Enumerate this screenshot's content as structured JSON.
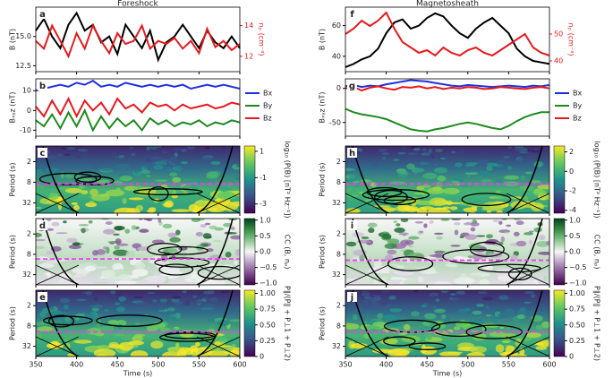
{
  "chart_data": [
    {
      "type": "line",
      "title": "Foreshock",
      "panel_label": "a",
      "ylabel": "B (nT)",
      "y2label": "nₚ (cm⁻³)",
      "xlim": [
        350,
        600
      ],
      "ylim": [
        12,
        17.5
      ],
      "yticks": [
        {
          "value": 12.5,
          "label": "12.5"
        },
        {
          "value": 15,
          "label": "15.0"
        }
      ],
      "y2lim": [
        11,
        15.2
      ],
      "y2ticks": [
        12,
        14
      ],
      "x": [
        350,
        360,
        370,
        380,
        390,
        400,
        410,
        420,
        430,
        440,
        450,
        460,
        470,
        480,
        490,
        500,
        510,
        520,
        530,
        540,
        550,
        560,
        570,
        580,
        590,
        600
      ],
      "series": [
        {
          "color": "#000000",
          "values": [
            15.5,
            16.5,
            15,
            14,
            16,
            17,
            15.5,
            16,
            14.5,
            15,
            13.5,
            16,
            15,
            14,
            15.5,
            13,
            14.5,
            15,
            16,
            15,
            14,
            15.5,
            14.5,
            14,
            15,
            14
          ]
        },
        {
          "color": "#e8191c",
          "axis": "y2",
          "values": [
            13,
            12.5,
            14,
            13,
            12,
            13.5,
            12.5,
            14,
            13,
            12.2,
            13.5,
            12.8,
            13,
            14,
            12.5,
            13,
            12.8,
            13.2,
            12.5,
            13,
            12.2,
            13.8,
            12.6,
            13,
            12.4,
            12.8
          ]
        }
      ]
    },
    {
      "type": "line",
      "panel_label": "b",
      "ylabel": "Bₓᵧz (nT)",
      "xlim": [
        350,
        600
      ],
      "ylim": [
        -13,
        16
      ],
      "yticks": [
        -10,
        0,
        10
      ],
      "x": [
        350,
        360,
        370,
        380,
        390,
        400,
        410,
        420,
        430,
        440,
        450,
        460,
        470,
        480,
        490,
        500,
        510,
        520,
        530,
        540,
        550,
        560,
        570,
        580,
        590,
        600
      ],
      "series": [
        {
          "name": "Bx",
          "color": "#1f2fe0",
          "values": [
            10,
            11,
            12,
            13,
            12,
            14,
            13,
            15,
            12,
            13,
            12,
            14,
            13,
            12,
            13,
            12,
            13,
            12,
            13,
            11,
            12,
            13,
            12,
            13,
            12,
            11
          ]
        },
        {
          "name": "By",
          "color": "#1e8a1e",
          "values": [
            -5,
            -8,
            -2,
            -9,
            -1,
            -8,
            0,
            -10,
            -3,
            -9,
            -4,
            -8,
            -5,
            -10,
            -4,
            -7,
            -5,
            -8,
            -6,
            -7,
            -5,
            -8,
            -6,
            -7,
            -5,
            -6
          ]
        },
        {
          "name": "Bz",
          "color": "#e8191c",
          "values": [
            2,
            -3,
            5,
            -2,
            6,
            -3,
            5,
            0,
            4,
            -2,
            6,
            1,
            3,
            -1,
            4,
            2,
            3,
            0,
            3,
            1,
            2,
            3,
            1,
            2,
            4,
            3
          ]
        }
      ]
    },
    {
      "type": "heatmap",
      "panel_label": "c",
      "ylabel": "Period (s)",
      "xlim": [
        350,
        600
      ],
      "ylim": [
        0.7,
        64
      ],
      "yticks": [
        2,
        8,
        32
      ],
      "reference_period": 9,
      "colormap": "viridis",
      "colorbar": {
        "label": "log₁₀ (P(B) [nT² Hz⁻¹])",
        "lim": [
          -3.7,
          1.4
        ],
        "ticks": [
          -3,
          -1,
          1
        ]
      }
    },
    {
      "type": "heatmap",
      "panel_label": "d",
      "ylabel": "Period (s)",
      "xlim": [
        350,
        600
      ],
      "ylim": [
        0.7,
        64
      ],
      "yticks": [
        2,
        8,
        32
      ],
      "reference_period": 11,
      "colormap": "PRGn",
      "colorbar": {
        "label": "CC (B, nₚ)",
        "lim": [
          -1.05,
          1.05
        ],
        "ticks": [
          {
            "value": -1,
            "label": "−1.0"
          },
          {
            "value": -0.5,
            "label": "−0.5"
          },
          {
            "value": 0,
            "label": "0.0"
          },
          {
            "value": 0.5,
            "label": "0.5"
          },
          {
            "value": 1,
            "label": "1.0"
          }
        ]
      }
    },
    {
      "type": "heatmap",
      "panel_label": "e",
      "ylabel": "Period (s)",
      "xlim": [
        350,
        600
      ],
      "ylim": [
        0.7,
        64
      ],
      "yticks": [
        2,
        8,
        32
      ],
      "reference_period": 12,
      "colormap": "viridis",
      "xticks": [
        350,
        400,
        450,
        500,
        550,
        600
      ],
      "xlabel": "Time (s)",
      "colorbar": {
        "label": "P∥/(P∥ + P⊥1 + P⊥2)",
        "lim": [
          0,
          1.05
        ],
        "ticks": [
          0,
          {
            "value": 0.25,
            "label": "0.25"
          },
          {
            "value": 0.5,
            "label": "0.50"
          },
          {
            "value": 0.75,
            "label": "0.75"
          },
          {
            "value": 1,
            "label": "1.00"
          }
        ]
      }
    },
    {
      "type": "line",
      "title": "Magnetosheath",
      "panel_label": "f",
      "ylabel": "B (nT)",
      "y2label": "nₚ (cm⁻³)",
      "xlim": [
        350,
        600
      ],
      "ylim": [
        30,
        72
      ],
      "yticks": [
        40,
        60
      ],
      "y2lim": [
        36,
        60
      ],
      "y2ticks": [
        40,
        50
      ],
      "x": [
        350,
        360,
        370,
        380,
        390,
        400,
        410,
        420,
        430,
        440,
        450,
        460,
        470,
        480,
        490,
        500,
        510,
        520,
        530,
        540,
        550,
        560,
        570,
        580,
        590,
        600
      ],
      "series": [
        {
          "color": "#000000",
          "values": [
            33,
            35,
            38,
            40,
            45,
            55,
            62,
            64,
            58,
            60,
            65,
            68,
            66,
            60,
            55,
            52,
            58,
            62,
            65,
            60,
            55,
            45,
            40,
            37,
            36,
            35
          ]
        },
        {
          "color": "#e8191c",
          "axis": "y2",
          "values": [
            50,
            52,
            55,
            53,
            55,
            58,
            52,
            47,
            45,
            43,
            44,
            42,
            45,
            43,
            42,
            44,
            45,
            43,
            42,
            44,
            46,
            48,
            50,
            45,
            43,
            42
          ]
        }
      ]
    },
    {
      "type": "line",
      "panel_label": "g",
      "ylabel": "Bₓᵧz (nT)",
      "xlim": [
        350,
        600
      ],
      "ylim": [
        -70,
        14
      ],
      "yticks": [
        -50,
        0
      ],
      "x": [
        350,
        360,
        370,
        380,
        390,
        400,
        410,
        420,
        430,
        440,
        450,
        460,
        470,
        480,
        490,
        500,
        510,
        520,
        530,
        540,
        550,
        560,
        570,
        580,
        590,
        600
      ],
      "series": [
        {
          "name": "Bx",
          "color": "#1f2fe0",
          "values": [
            3,
            5,
            2,
            4,
            3,
            6,
            8,
            10,
            12,
            11,
            10,
            8,
            6,
            4,
            3,
            5,
            4,
            3,
            2,
            3,
            4,
            3,
            2,
            4,
            3,
            5
          ]
        },
        {
          "name": "By",
          "color": "#1e8a1e",
          "values": [
            -30,
            -35,
            -38,
            -40,
            -42,
            -45,
            -50,
            -55,
            -60,
            -62,
            -63,
            -60,
            -58,
            -55,
            -52,
            -50,
            -52,
            -55,
            -58,
            -60,
            -55,
            -48,
            -42,
            -38,
            -35,
            -35
          ]
        },
        {
          "name": "Bz",
          "color": "#e8191c",
          "values": [
            0,
            2,
            -3,
            1,
            3,
            0,
            -2,
            2,
            1,
            3,
            0,
            2,
            -1,
            1,
            0,
            2,
            1,
            -1,
            0,
            2,
            1,
            0,
            -1,
            1,
            2,
            0
          ]
        }
      ]
    },
    {
      "type": "heatmap",
      "panel_label": "h",
      "ylabel": "Period (s)",
      "xlim": [
        350,
        600
      ],
      "ylim": [
        0.7,
        64
      ],
      "yticks": [
        2,
        8,
        32
      ],
      "reference_period": 9,
      "colormap": "viridis",
      "colorbar": {
        "label": "log₁₀ (P(B) [nT² Hz⁻¹])",
        "lim": [
          -4.3,
          2.6
        ],
        "ticks": [
          -4,
          -2,
          0,
          2
        ]
      }
    },
    {
      "type": "heatmap",
      "panel_label": "i",
      "ylabel": "Period (s)",
      "xlim": [
        350,
        600
      ],
      "ylim": [
        0.7,
        64
      ],
      "yticks": [
        2,
        8,
        32
      ],
      "reference_period": 12,
      "colormap": "PRGn",
      "colorbar": {
        "label": "CC (B, nₚ)",
        "lim": [
          -1.05,
          1.05
        ],
        "ticks": [
          {
            "value": -1,
            "label": "−1.0"
          },
          {
            "value": -0.5,
            "label": "−0.5"
          },
          {
            "value": 0,
            "label": "0.0"
          },
          {
            "value": 0.5,
            "label": "0.5"
          },
          {
            "value": 1,
            "label": "1.0"
          }
        ]
      }
    },
    {
      "type": "heatmap",
      "panel_label": "j",
      "ylabel": "Period (s)",
      "xlim": [
        350,
        600
      ],
      "ylim": [
        0.7,
        64
      ],
      "yticks": [
        2,
        8,
        32
      ],
      "reference_period": 12,
      "colormap": "viridis",
      "xticks": [
        350,
        400,
        450,
        500,
        550,
        600
      ],
      "xlabel": "Time (s)",
      "colorbar": {
        "label": "P∥/(P∥ + P⊥1 + P⊥2)",
        "lim": [
          0,
          1.05
        ],
        "ticks": [
          0,
          {
            "value": 0.25,
            "label": "0.25"
          },
          {
            "value": 0.5,
            "label": "0.50"
          },
          {
            "value": 0.75,
            "label": "0.75"
          },
          {
            "value": 1,
            "label": "1.00"
          }
        ]
      }
    }
  ]
}
